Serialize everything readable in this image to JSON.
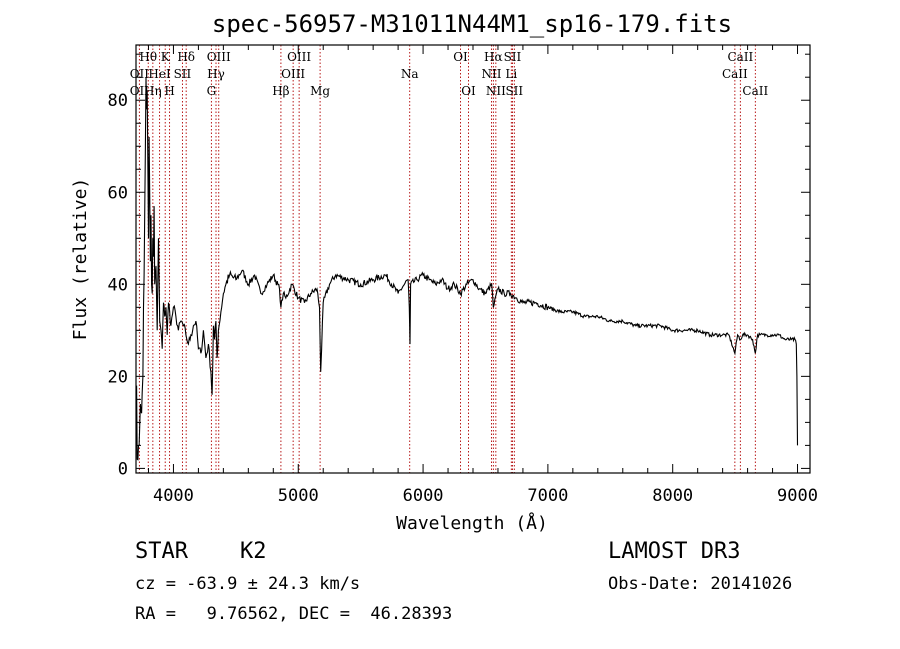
{
  "chart_data": {
    "type": "line",
    "title": "spec-56957-M31011N44M1_sp16-179.fits",
    "xlabel": "Wavelength (Å)",
    "ylabel": "Flux (relative)",
    "xlim": [
      3700,
      9100
    ],
    "ylim": [
      -1,
      92
    ],
    "xticks": [
      4000,
      5000,
      6000,
      7000,
      8000,
      9000
    ],
    "xtick_labels": [
      "4000",
      "5000",
      "6000",
      "7000",
      "8000",
      "9000"
    ],
    "yticks": [
      0,
      20,
      40,
      60,
      80
    ],
    "ytick_labels": [
      "0",
      "20",
      "40",
      "60",
      "80"
    ],
    "series": [
      {
        "name": "flux",
        "x": [
          3705,
          3710,
          3725,
          3735,
          3745,
          3755,
          3760,
          3765,
          3770,
          3775,
          3780,
          3785,
          3790,
          3795,
          3800,
          3805,
          3810,
          3815,
          3820,
          3825,
          3830,
          3835,
          3840,
          3845,
          3850,
          3860,
          3870,
          3880,
          3890,
          3900,
          3910,
          3920,
          3930,
          3940,
          3950,
          3960,
          3970,
          3980,
          4000,
          4020,
          4040,
          4060,
          4080,
          4100,
          4120,
          4140,
          4160,
          4180,
          4200,
          4220,
          4240,
          4260,
          4280,
          4300,
          4310,
          4320,
          4330,
          4340,
          4350,
          4360,
          4380,
          4400,
          4420,
          4450,
          4500,
          4550,
          4600,
          4650,
          4700,
          4750,
          4800,
          4850,
          4861,
          4880,
          4900,
          4950,
          5000,
          5050,
          5100,
          5150,
          5170,
          5180,
          5200,
          5250,
          5300,
          5400,
          5500,
          5600,
          5700,
          5800,
          5850,
          5880,
          5890,
          5895,
          5900,
          5950,
          6000,
          6050,
          6100,
          6150,
          6200,
          6250,
          6300,
          6350,
          6400,
          6450,
          6500,
          6550,
          6563,
          6600,
          6650,
          6700,
          6750,
          6800,
          6900,
          7000,
          7100,
          7200,
          7300,
          7400,
          7500,
          7600,
          7700,
          7800,
          7900,
          8000,
          8100,
          8200,
          8300,
          8400,
          8450,
          8498,
          8520,
          8542,
          8560,
          8600,
          8640,
          8662,
          8680,
          8700,
          8750,
          8800,
          8850,
          8900,
          8950,
          8980,
          8990,
          8995,
          9000
        ],
        "y": [
          18,
          2,
          5,
          14,
          12,
          20,
          35,
          42,
          55,
          70,
          85,
          78,
          82,
          65,
          50,
          72,
          60,
          45,
          55,
          40,
          38,
          50,
          46,
          57,
          40,
          44,
          30,
          50,
          32,
          30,
          26,
          36,
          33,
          35,
          29,
          36,
          34,
          31,
          35,
          33,
          30,
          32,
          31,
          29,
          27,
          29,
          31,
          32,
          26,
          25,
          30,
          24,
          27,
          21,
          16,
          31,
          28,
          32,
          24,
          30,
          34,
          38,
          40,
          42,
          41,
          43,
          40,
          42,
          38,
          40,
          42,
          39,
          35,
          38,
          37,
          40,
          37,
          36,
          38,
          39,
          35,
          21,
          36,
          40,
          42,
          41,
          40,
          41,
          42,
          38,
          40,
          41,
          35,
          27,
          40,
          41,
          42,
          41,
          40,
          41,
          39,
          40,
          38,
          40,
          41,
          39,
          38,
          40,
          35,
          39,
          38,
          38,
          37,
          36,
          36,
          35,
          34,
          34,
          33,
          33,
          32,
          32,
          31,
          31,
          31,
          30,
          30,
          30,
          29,
          29,
          29,
          25,
          29,
          28,
          29,
          29,
          28,
          25,
          29,
          29,
          29,
          29,
          29,
          28,
          28,
          28,
          27,
          20,
          5
        ]
      }
    ],
    "spectral_lines": [
      {
        "label": "Hθ",
        "wavelength": 3798,
        "row": 0
      },
      {
        "label": "K",
        "wavelength": 3934,
        "row": 0
      },
      {
        "label": "Hδ",
        "wavelength": 4102,
        "row": 0
      },
      {
        "label": "OIII",
        "wavelength": 4363,
        "row": 0
      },
      {
        "label": "OIII",
        "wavelength": 5007,
        "row": 0
      },
      {
        "label": "OI",
        "wavelength": 6300,
        "row": 0
      },
      {
        "label": "Hα",
        "wavelength": 6563,
        "row": 0
      },
      {
        "label": "SII",
        "wavelength": 6716,
        "row": 0
      },
      {
        "label": "CaII",
        "wavelength": 8542,
        "row": 0
      },
      {
        "label": "OII",
        "wavelength": 3727,
        "row": 1
      },
      {
        "label": "HeI",
        "wavelength": 3889,
        "row": 1
      },
      {
        "label": "SII",
        "wavelength": 4072,
        "row": 1
      },
      {
        "label": "Hγ",
        "wavelength": 4341,
        "row": 1
      },
      {
        "label": "OIII",
        "wavelength": 4959,
        "row": 1
      },
      {
        "label": "Na",
        "wavelength": 5893,
        "row": 1
      },
      {
        "label": "NII",
        "wavelength": 6548,
        "row": 1
      },
      {
        "label": "Li",
        "wavelength": 6707,
        "row": 1
      },
      {
        "label": "CaII",
        "wavelength": 8498,
        "row": 1
      },
      {
        "label": "OII",
        "wavelength": 3727,
        "row": 2
      },
      {
        "label": "Hη",
        "wavelength": 3835,
        "row": 2
      },
      {
        "label": "H",
        "wavelength": 3969,
        "row": 2
      },
      {
        "label": "G",
        "wavelength": 4304,
        "row": 2
      },
      {
        "label": "Hβ",
        "wavelength": 4861,
        "row": 2
      },
      {
        "label": "Mg",
        "wavelength": 5175,
        "row": 2
      },
      {
        "label": "OI",
        "wavelength": 6364,
        "row": 2
      },
      {
        "label": "NII",
        "wavelength": 6583,
        "row": 2
      },
      {
        "label": "SII",
        "wavelength": 6731,
        "row": 2
      },
      {
        "label": "CaII",
        "wavelength": 8662,
        "row": 2
      }
    ]
  },
  "info": {
    "class_label": "STAR",
    "subclass": "K2",
    "survey": "LAMOST DR3",
    "cz": "cz = -63.9 ± 24.3 km/s",
    "obs_date": "Obs-Date: 20141026",
    "coords": "RA =   9.76562, DEC =  46.28393"
  }
}
